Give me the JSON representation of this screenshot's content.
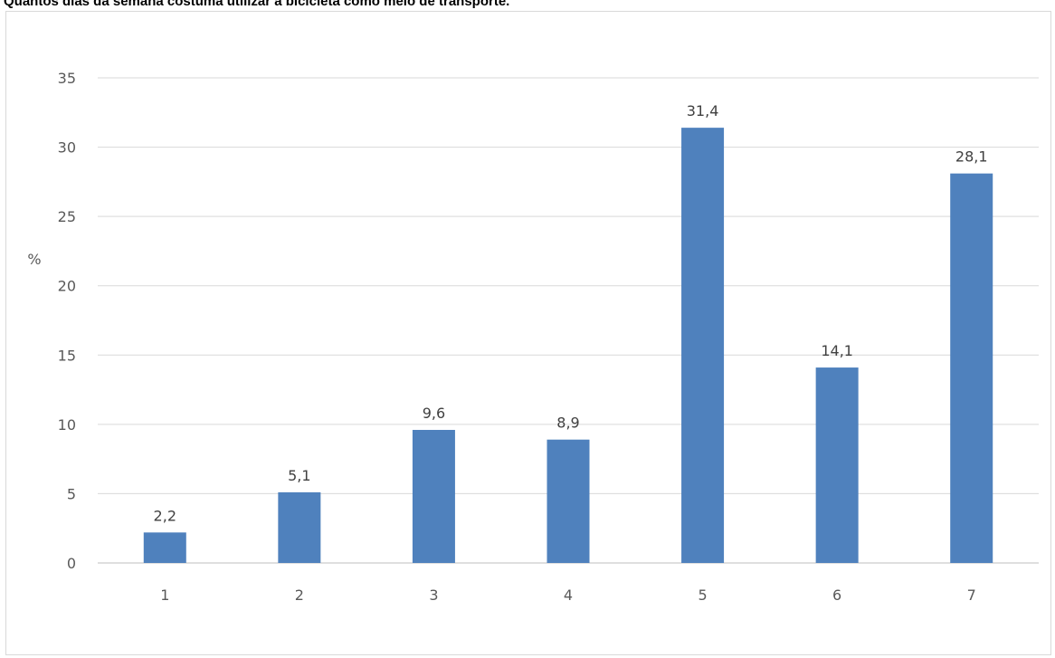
{
  "page": {
    "title": "Quantos dias da semana costuma utilizar a bicicleta como meio de transporte."
  },
  "chart_data": {
    "type": "bar",
    "title": "",
    "xlabel": "",
    "ylabel": "%",
    "categories": [
      "1",
      "2",
      "3",
      "4",
      "5",
      "6",
      "7"
    ],
    "values": [
      2.2,
      5.1,
      9.6,
      8.9,
      31.4,
      14.1,
      28.1
    ],
    "data_labels": [
      "2,2",
      "5,1",
      "9,6",
      "8,9",
      "31,4",
      "14,1",
      "28,1"
    ],
    "ylim": [
      0,
      35
    ],
    "yticks": [
      0,
      5,
      10,
      15,
      20,
      25,
      30,
      35
    ],
    "grid": true,
    "legend": "none",
    "colors": {
      "bar": "#4f81bd",
      "grid": "#d9d9d9",
      "axis": "#bfbfbf"
    }
  }
}
